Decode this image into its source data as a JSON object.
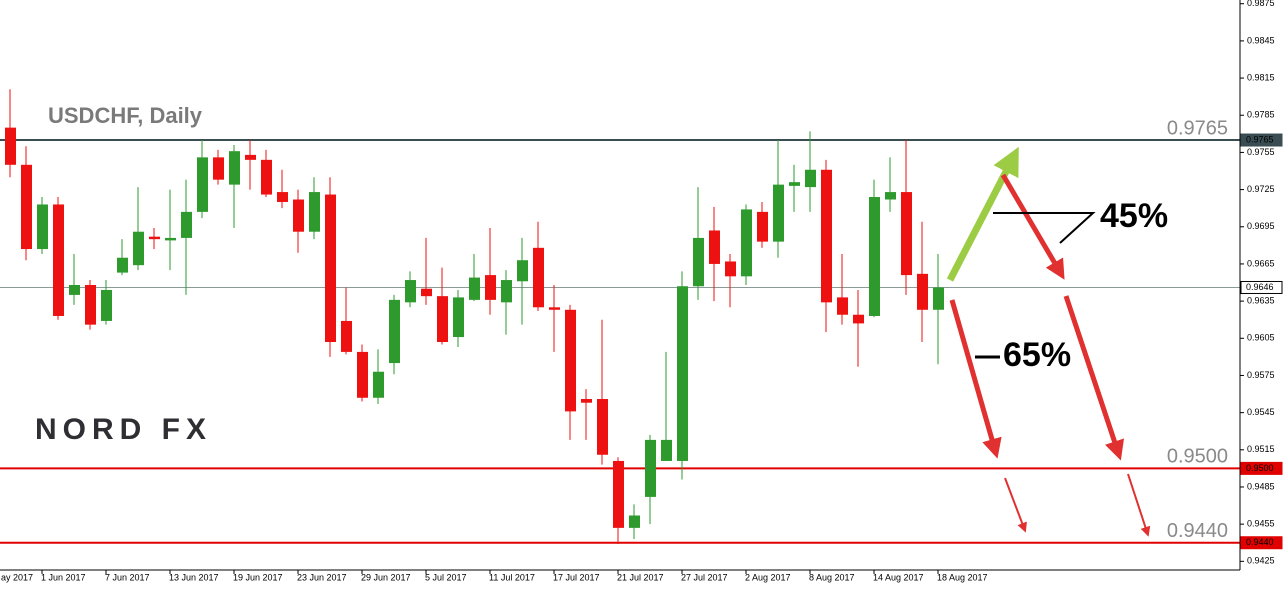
{
  "chart_data": {
    "type": "candlestick",
    "title": "USDCHF, Daily",
    "logo": "NORD FX",
    "annotations": [
      "45%",
      "65%"
    ],
    "clipped_x_label": "ay 2017",
    "categories": [
      null,
      null,
      "1 Jun 2017",
      null,
      null,
      null,
      "7 Jun 2017",
      null,
      null,
      null,
      "13 Jun 2017",
      null,
      null,
      null,
      "19 Jun 2017",
      null,
      null,
      null,
      "23 Jun 2017",
      null,
      null,
      null,
      "29 Jun 2017",
      null,
      null,
      null,
      "5 Jul 2017",
      null,
      null,
      null,
      "11 Jul 2017",
      null,
      null,
      null,
      "17 Jul 2017",
      null,
      null,
      null,
      "21 Jul 2017",
      null,
      null,
      null,
      "27 Jul 2017",
      null,
      null,
      null,
      "2 Aug 2017",
      null,
      null,
      null,
      "8 Aug 2017",
      null,
      null,
      null,
      "14 Aug 2017",
      null,
      null,
      null,
      "18 Aug 2017"
    ],
    "open": [
      0.9775,
      0.9745,
      0.9677,
      0.9713,
      0.964,
      0.9648,
      0.9619,
      0.9658,
      0.9664,
      0.9687,
      0.9684,
      0.9686,
      0.9707,
      0.9751,
      0.9729,
      0.9753,
      0.9749,
      0.9723,
      0.9717,
      0.9691,
      0.9721,
      0.9619,
      0.9594,
      0.9557,
      0.9585,
      0.9634,
      0.9645,
      0.9639,
      0.9606,
      0.9636,
      0.9656,
      0.9634,
      0.9651,
      0.9678,
      0.963,
      0.9628,
      0.9556,
      0.9556,
      0.9506,
      0.9452,
      0.9477,
      0.9506,
      0.9506,
      0.9647,
      0.9692,
      0.9667,
      0.9655,
      0.9707,
      0.9683,
      0.9728,
      0.9727,
      0.9741,
      0.9638,
      0.9624,
      0.9623,
      0.9717,
      0.9723,
      0.9657,
      0.9628
    ],
    "high": [
      0.9806,
      0.976,
      0.9719,
      0.9719,
      0.9673,
      0.9652,
      0.9652,
      0.9685,
      0.9727,
      0.9694,
      0.9725,
      0.9733,
      0.9765,
      0.9757,
      0.9761,
      0.9765,
      0.9757,
      0.9741,
      0.9725,
      0.9735,
      0.9735,
      0.9646,
      0.96,
      0.9596,
      0.964,
      0.9659,
      0.9686,
      0.9662,
      0.9644,
      0.9673,
      0.9694,
      0.966,
      0.9686,
      0.9699,
      0.9648,
      0.9632,
      0.9564,
      0.962,
      0.9509,
      0.9471,
      0.9527,
      0.9594,
      0.9659,
      0.9727,
      0.9711,
      0.9673,
      0.9713,
      0.9715,
      0.9765,
      0.9745,
      0.9772,
      0.9749,
      0.9673,
      0.9644,
      0.9733,
      0.9751,
      0.9765,
      0.9699,
      0.9673
    ],
    "low": [
      0.9735,
      0.9668,
      0.9673,
      0.962,
      0.9632,
      0.9612,
      0.9616,
      0.9656,
      0.966,
      0.9677,
      0.966,
      0.964,
      0.9702,
      0.9729,
      0.9694,
      0.9725,
      0.9719,
      0.971,
      0.9674,
      0.9685,
      0.959,
      0.9592,
      0.9554,
      0.9552,
      0.9576,
      0.963,
      0.9632,
      0.96,
      0.9598,
      0.9635,
      0.9624,
      0.9608,
      0.9616,
      0.9627,
      0.9594,
      0.9523,
      0.9523,
      0.9503,
      0.9439,
      0.9443,
      0.9455,
      0.9506,
      0.9491,
      0.9636,
      0.9635,
      0.963,
      0.9648,
      0.9678,
      0.967,
      0.9707,
      0.9707,
      0.961,
      0.9616,
      0.9582,
      0.9622,
      0.9707,
      0.964,
      0.9602,
      0.9584
    ],
    "close": [
      0.9745,
      0.9677,
      0.9713,
      0.9623,
      0.9648,
      0.9616,
      0.9644,
      0.967,
      0.9691,
      0.9685,
      0.9686,
      0.9707,
      0.9751,
      0.9733,
      0.9756,
      0.9749,
      0.9721,
      0.9715,
      0.9691,
      0.9723,
      0.9602,
      0.9594,
      0.9557,
      0.9578,
      0.9636,
      0.9652,
      0.9639,
      0.9602,
      0.9638,
      0.9654,
      0.9636,
      0.9652,
      0.9668,
      0.963,
      0.9628,
      0.9546,
      0.9553,
      0.9511,
      0.9452,
      0.9462,
      0.9523,
      0.9523,
      0.9647,
      0.9686,
      0.9665,
      0.9655,
      0.9709,
      0.9683,
      0.9729,
      0.9731,
      0.9741,
      0.9634,
      0.9624,
      0.9617,
      0.9719,
      0.9723,
      0.9656,
      0.9628,
      0.9646
    ],
    "up_color": "#2e9a2e",
    "down_color": "#ee1111",
    "ylim": [
      0.9418,
      0.9878
    ],
    "yticks": [
      0.9875,
      0.9845,
      0.9815,
      0.9785,
      0.9755,
      0.9725,
      0.9695,
      0.9665,
      0.9635,
      0.9605,
      0.9575,
      0.9545,
      0.9515,
      0.9485,
      0.9455,
      0.9425
    ],
    "levels": [
      {
        "value": 0.9765,
        "color": "#3a4d52"
      },
      {
        "value": {
          "value": 0.95,
          "label": "0.9500"
        },
        "color": "#e00000"
      },
      {
        "value": {
          "value": 0.944,
          "label": "0.9440"
        },
        "color": "#e00000"
      }
    ],
    "current_price": {
      "value": 0.9646,
      "color": "#8a9a96"
    }
  }
}
